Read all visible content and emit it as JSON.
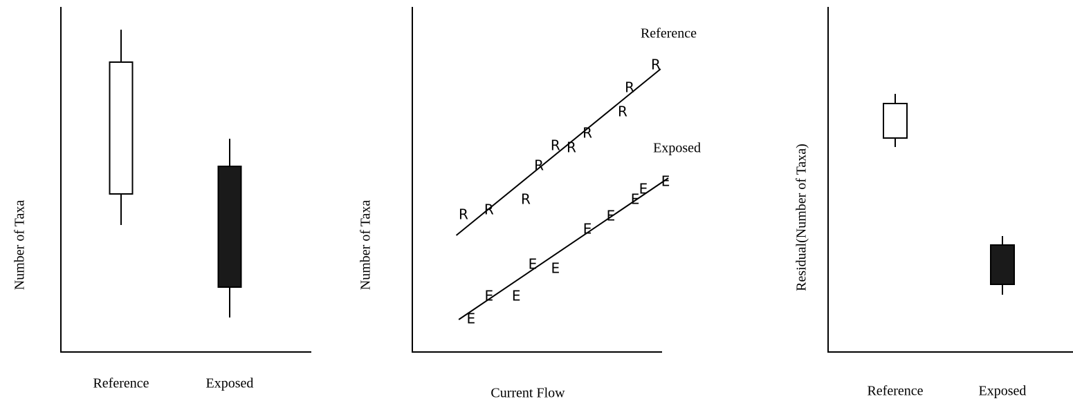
{
  "chart_data": [
    {
      "type": "box",
      "ylabel": "Number of Taxa",
      "categories": [
        "Reference",
        "Exposed"
      ],
      "ylim": [
        0,
        100
      ],
      "boxes": [
        {
          "low": 36.8,
          "q1": 45.8,
          "q3": 84,
          "high": 93.4,
          "color": "#ffffff"
        },
        {
          "low": 10,
          "q1": 18.8,
          "q3": 53.8,
          "high": 61.8,
          "color": "#1a1a1a"
        }
      ]
    },
    {
      "type": "scatter",
      "xlabel": "Current Flow",
      "ylabel": "Number of Taxa",
      "xlim": [
        0,
        100
      ],
      "ylim": [
        0,
        100
      ],
      "series": [
        {
          "name": "Reference",
          "marker": "R",
          "x": [
            20.5,
            30.7,
            45.4,
            50.7,
            57.3,
            63.7,
            70.1,
            84.2,
            87.0,
            97.5
          ],
          "values": [
            39.6,
            41,
            44,
            53.8,
            59.6,
            59,
            63.2,
            69.4,
            76.4,
            83
          ],
          "line_x": [
            17.6,
            99.4
          ],
          "line_y": [
            33.8,
            82
          ]
        },
        {
          "name": "Exposed",
          "marker": "E",
          "x": [
            23.5,
            30.7,
            41.6,
            48.2,
            57.3,
            70.1,
            79.5,
            89.2,
            92.5,
            101.4
          ],
          "values": [
            9.4,
            16,
            16,
            25.2,
            24,
            35.4,
            39.2,
            44,
            47,
            49.2
          ],
          "line_x": [
            18.6,
            102.5
          ],
          "line_y": [
            9.4,
            50.4
          ]
        }
      ]
    },
    {
      "type": "box",
      "ylabel": "Residual(Number of Taxa)",
      "categories": [
        "Reference",
        "Exposed"
      ],
      "ylim": [
        0,
        100
      ],
      "boxes": [
        {
          "low": 59.4,
          "q1": 62,
          "q3": 72,
          "high": 74.8,
          "color": "#ffffff"
        },
        {
          "low": 16.6,
          "q1": 19.6,
          "q3": 31,
          "high": 33.6,
          "color": "#1a1a1a"
        }
      ]
    }
  ]
}
